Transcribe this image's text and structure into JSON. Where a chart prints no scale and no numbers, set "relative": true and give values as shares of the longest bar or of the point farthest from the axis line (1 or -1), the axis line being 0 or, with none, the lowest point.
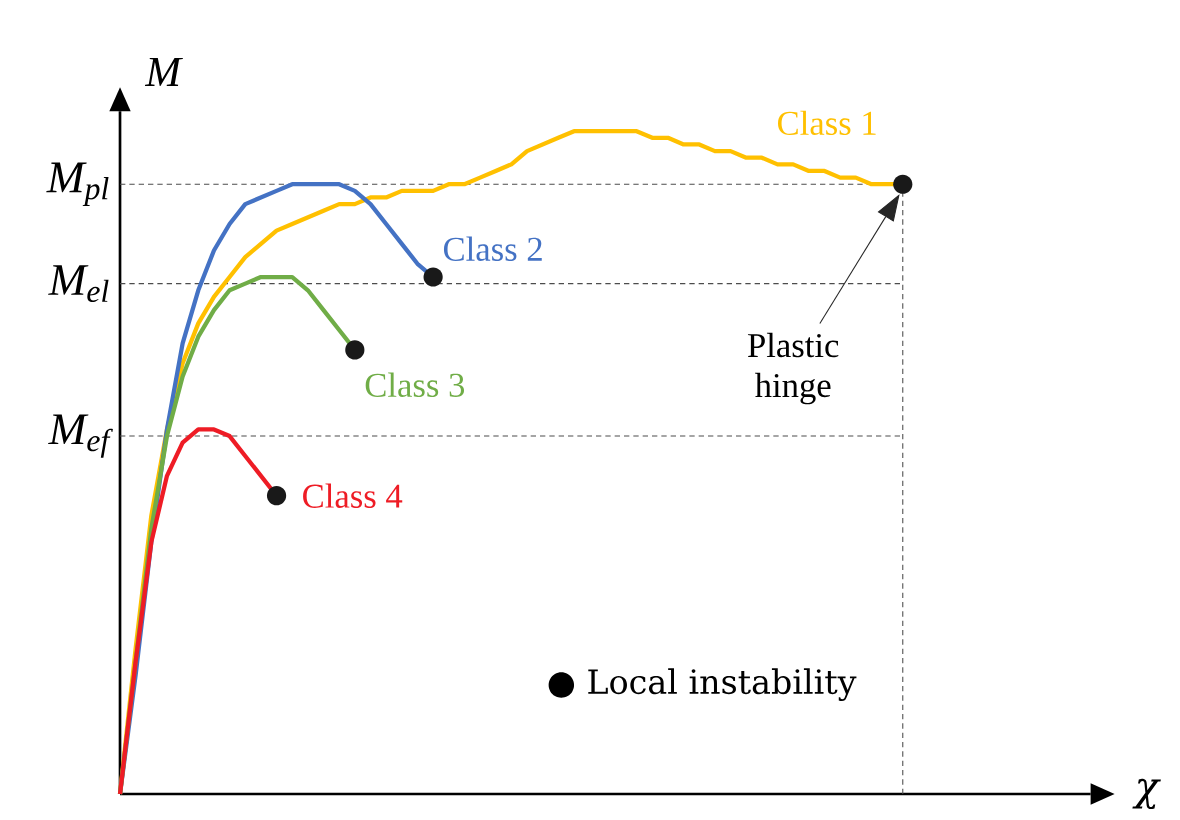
{
  "chart_data": {
    "type": "line",
    "relative": true,
    "xlabel": "χ",
    "ylabel": "M",
    "categories": [
      null,
      null,
      null,
      null,
      null,
      null,
      null,
      null,
      null,
      null,
      null,
      null,
      null,
      null,
      null,
      null,
      null,
      null,
      null,
      null,
      null,
      null,
      null,
      null,
      null,
      null,
      null,
      null,
      null,
      null,
      null,
      null,
      null,
      null,
      null,
      null,
      null,
      null,
      null,
      null,
      null,
      null,
      null,
      null,
      null,
      null,
      null,
      null,
      null,
      null,
      null,
      null,
      null,
      null,
      null,
      null,
      null,
      null,
      null,
      null,
      null,
      null,
      null
    ],
    "series": [
      {
        "name": "Class 1",
        "color": "#ffc000",
        "values": [
          0,
          0.22,
          0.42,
          0.55,
          0.65,
          0.71,
          0.75,
          0.78,
          0.81,
          0.83,
          0.85,
          0.86,
          0.87,
          0.88,
          0.89,
          0.89,
          0.9,
          0.9,
          0.91,
          0.91,
          0.91,
          0.92,
          0.92,
          0.93,
          0.94,
          0.95,
          0.97,
          0.98,
          0.99,
          1.0,
          1.0,
          1.0,
          1.0,
          1.0,
          0.99,
          0.99,
          0.98,
          0.98,
          0.97,
          0.97,
          0.96,
          0.96,
          0.95,
          0.95,
          0.94,
          0.94,
          0.93,
          0.93,
          0.92,
          0.92,
          0.92,
          null,
          null,
          null,
          null,
          null,
          null,
          null,
          null,
          null,
          null,
          null,
          null
        ]
      },
      {
        "name": "Class 2",
        "color": "#4472c4",
        "values": [
          0,
          0.18,
          0.38,
          0.55,
          0.68,
          0.76,
          0.82,
          0.86,
          0.89,
          0.9,
          0.91,
          0.92,
          0.92,
          0.92,
          0.92,
          0.91,
          0.89,
          0.86,
          0.83,
          0.8,
          0.78,
          null,
          null,
          null,
          null,
          null,
          null,
          null,
          null,
          null,
          null,
          null,
          null,
          null,
          null,
          null,
          null,
          null,
          null,
          null,
          null,
          null,
          null,
          null,
          null,
          null,
          null,
          null,
          null,
          null,
          null,
          null,
          null,
          null,
          null,
          null,
          null,
          null,
          null,
          null,
          null,
          null,
          null
        ]
      },
      {
        "name": "Class 3",
        "color": "#70ad47",
        "values": [
          0,
          0.2,
          0.4,
          0.54,
          0.63,
          0.69,
          0.73,
          0.76,
          0.77,
          0.78,
          0.78,
          0.78,
          0.76,
          0.73,
          0.7,
          0.67,
          null,
          null,
          null,
          null,
          null,
          null,
          null,
          null,
          null,
          null,
          null,
          null,
          null,
          null,
          null,
          null,
          null,
          null,
          null,
          null,
          null,
          null,
          null,
          null,
          null,
          null,
          null,
          null,
          null,
          null,
          null,
          null,
          null,
          null,
          null,
          null,
          null,
          null,
          null,
          null,
          null,
          null,
          null,
          null,
          null,
          null,
          null
        ]
      },
      {
        "name": "Class 4",
        "color": "#ee1c25",
        "values": [
          0,
          0.2,
          0.38,
          0.48,
          0.53,
          0.55,
          0.55,
          0.54,
          0.51,
          0.48,
          0.45,
          null,
          null,
          null,
          null,
          null,
          null,
          null,
          null,
          null,
          null,
          null,
          null,
          null,
          null,
          null,
          null,
          null,
          null,
          null,
          null,
          null,
          null,
          null,
          null,
          null,
          null,
          null,
          null,
          null,
          null,
          null,
          null,
          null,
          null,
          null,
          null,
          null,
          null,
          null,
          null,
          null,
          null,
          null,
          null,
          null,
          null,
          null,
          null,
          null,
          null,
          null,
          null
        ]
      }
    ],
    "ref_lines": [
      {
        "axis": "y",
        "value": 0.92,
        "label": "M$_{pl}$",
        "line_style": "dashed"
      },
      {
        "axis": "y",
        "value": 0.77,
        "label": "M$_{el}$",
        "line_style": "dashed"
      },
      {
        "axis": "y",
        "value": 0.54,
        "label": "M$_{ef}$",
        "line_style": "dashed"
      }
    ],
    "annotations": [
      "Plastic hinge",
      "● Local instability"
    ]
  }
}
